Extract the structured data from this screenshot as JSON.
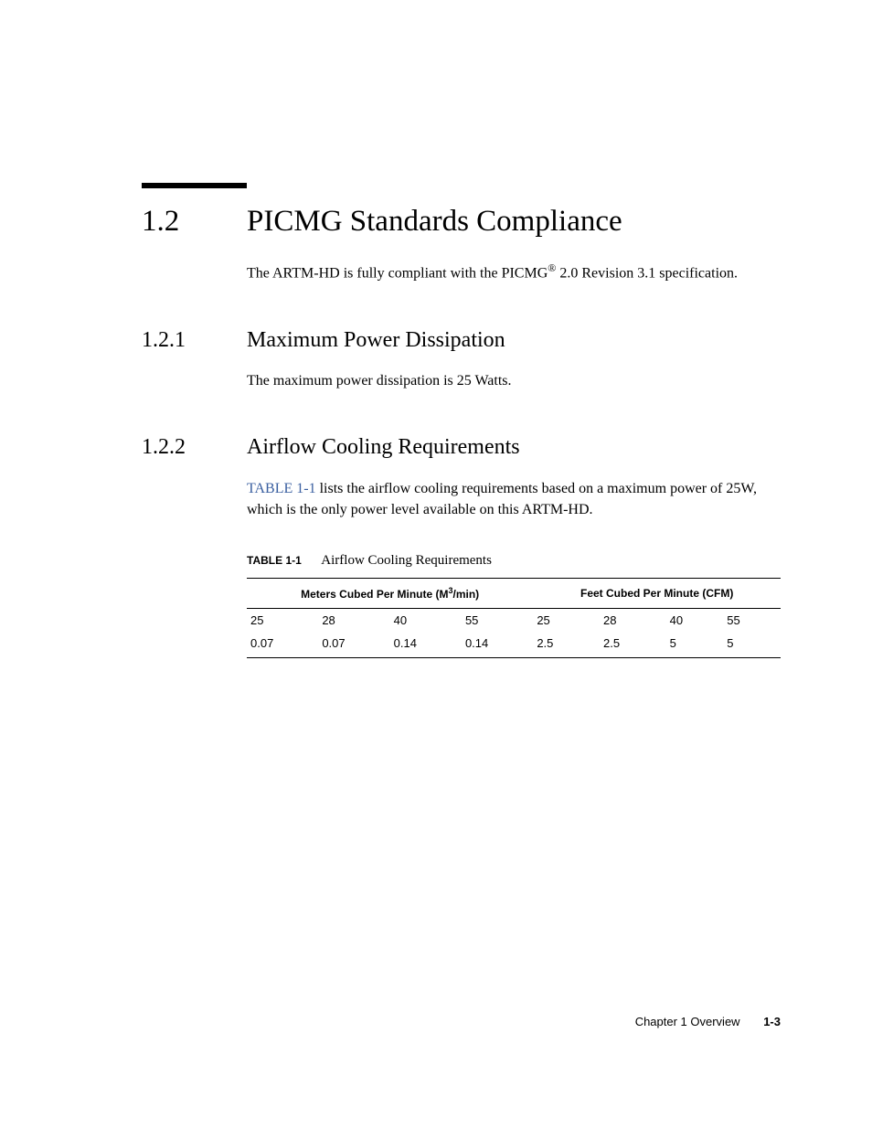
{
  "section": {
    "number": "1.2",
    "title": "PICMG Standards Compliance",
    "intro_pre": "The ARTM-HD is fully compliant with the PICMG",
    "intro_reg": "®",
    "intro_post": " 2.0 Revision 3.1 specification."
  },
  "sub1": {
    "number": "1.2.1",
    "title": "Maximum Power Dissipation",
    "text": "The maximum power dissipation is 25 Watts."
  },
  "sub2": {
    "number": "1.2.2",
    "title": "Airflow Cooling Requirements",
    "linktext": "TABLE 1-1",
    "text_post": " lists the airflow cooling requirements based on a maximum power of 25W, which is the only power level available on this ARTM-HD."
  },
  "table": {
    "label": "TABLE 1-1",
    "caption": "Airflow Cooling Requirements",
    "header_left_pre": "Meters Cubed Per Minute (M",
    "header_left_sup": "3",
    "header_left_post": "/min)",
    "header_right": "Feet Cubed Per Minute (CFM)",
    "rows": [
      [
        "25",
        "28",
        "40",
        "55",
        "25",
        "28",
        "40",
        "55"
      ],
      [
        "0.07",
        "0.07",
        "0.14",
        "0.14",
        "2.5",
        "2.5",
        "5",
        "5"
      ]
    ],
    "col_widths_pct": [
      12.5,
      12.5,
      12.5,
      12.5,
      12.5,
      12.5,
      12.5,
      12.5
    ]
  },
  "footer": {
    "chapter": "Chapter 1   Overview",
    "page": "1-3"
  },
  "colors": {
    "text": "#000000",
    "link": "#3a5fa0",
    "background": "#ffffff",
    "rule": "#000000"
  }
}
